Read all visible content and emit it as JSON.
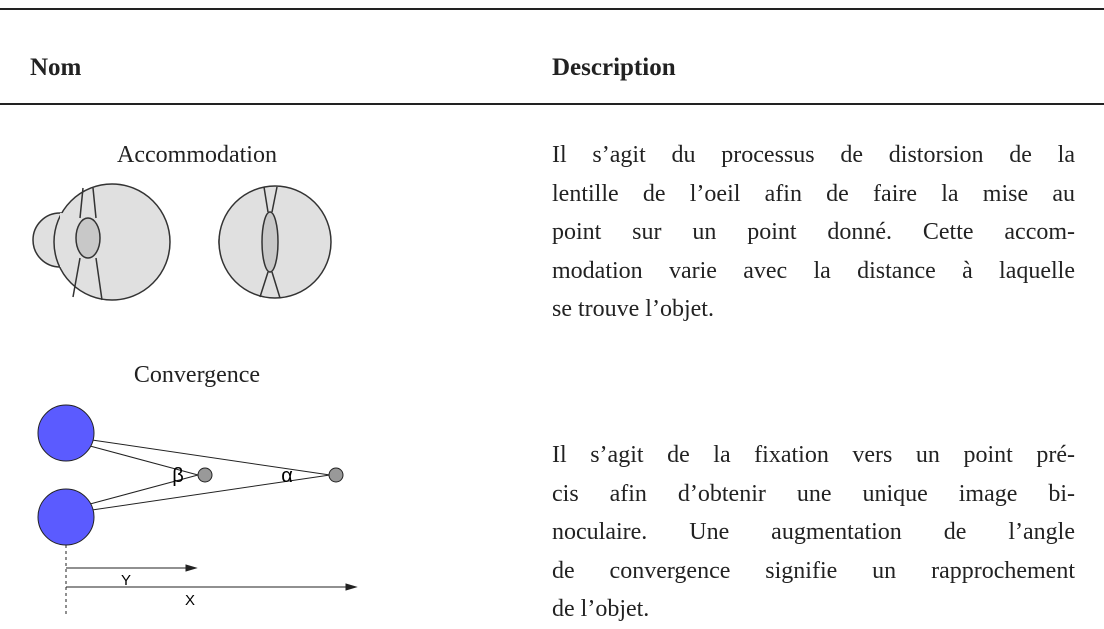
{
  "header": {
    "columns": [
      "Nom",
      "Description"
    ]
  },
  "rows": [
    {
      "name": "Accommodation",
      "description": [
        "Il s’agit du processus de distorsion de la",
        "lentille de l’oeil afin de faire la mise au",
        "point sur un point donné. Cette accom-",
        "modation varie avec la distance à laquelle",
        "se trouve l’objet."
      ]
    },
    {
      "name": "Convergence",
      "description": [
        "Il s’agit de la fixation vers un point pré-",
        "cis afin d’obtenir une unique image bi-",
        "noculaire. Une augmentation de l’angle",
        "de convergence signifie un rapprochement",
        "de l’objet."
      ],
      "figure_labels": [
        "β",
        "α",
        "Y",
        "X"
      ]
    }
  ]
}
